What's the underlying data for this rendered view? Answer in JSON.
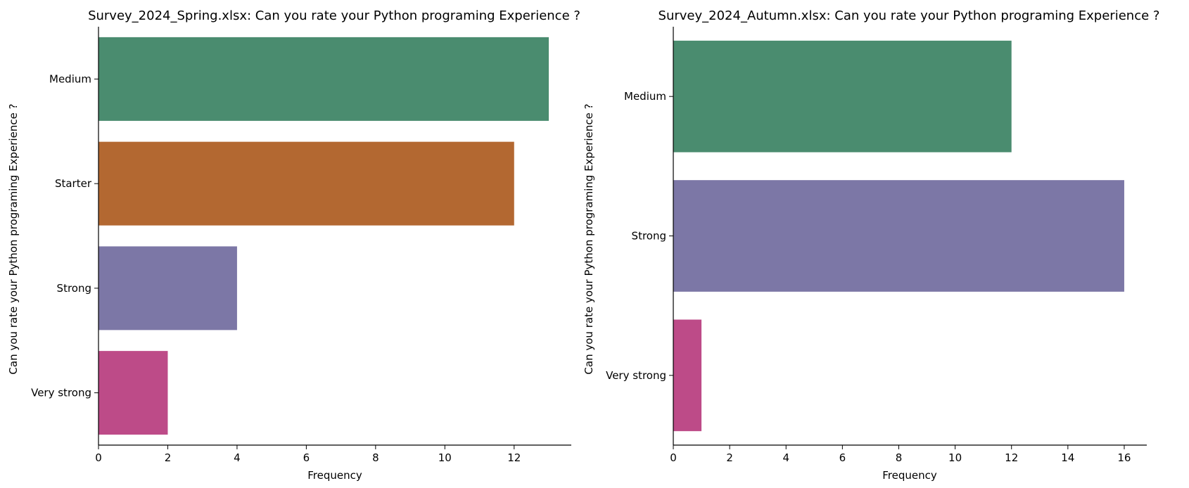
{
  "chart_data": [
    {
      "type": "bar",
      "orientation": "horizontal",
      "title": "Survey_2024_Spring.xlsx: Can you rate your Python programing Experience ?",
      "xlabel": "Frequency",
      "ylabel": "Can you rate your Python programing Experience ?",
      "categories": [
        "Medium",
        "Starter",
        "Strong",
        "Very strong"
      ],
      "values": [
        13,
        12,
        4,
        2
      ],
      "colors": [
        "#4a8c6f",
        "#b36831",
        "#7c77a6",
        "#bd4b88"
      ],
      "xlim": [
        0,
        13.65
      ],
      "xticks": [
        0,
        2,
        4,
        6,
        8,
        10,
        12
      ],
      "grid": false
    },
    {
      "type": "bar",
      "orientation": "horizontal",
      "title": "Survey_2024_Autumn.xlsx: Can you rate your Python programing Experience ?",
      "xlabel": "Frequency",
      "ylabel": "Can you rate your Python programing Experience ?",
      "categories": [
        "Medium",
        "Strong",
        "Very strong"
      ],
      "values": [
        12,
        16,
        1
      ],
      "colors": [
        "#4a8c6f",
        "#7c77a6",
        "#bd4b88"
      ],
      "xlim": [
        0,
        16.8
      ],
      "xticks": [
        0,
        2,
        4,
        6,
        8,
        10,
        12,
        14,
        16
      ],
      "grid": false
    }
  ]
}
